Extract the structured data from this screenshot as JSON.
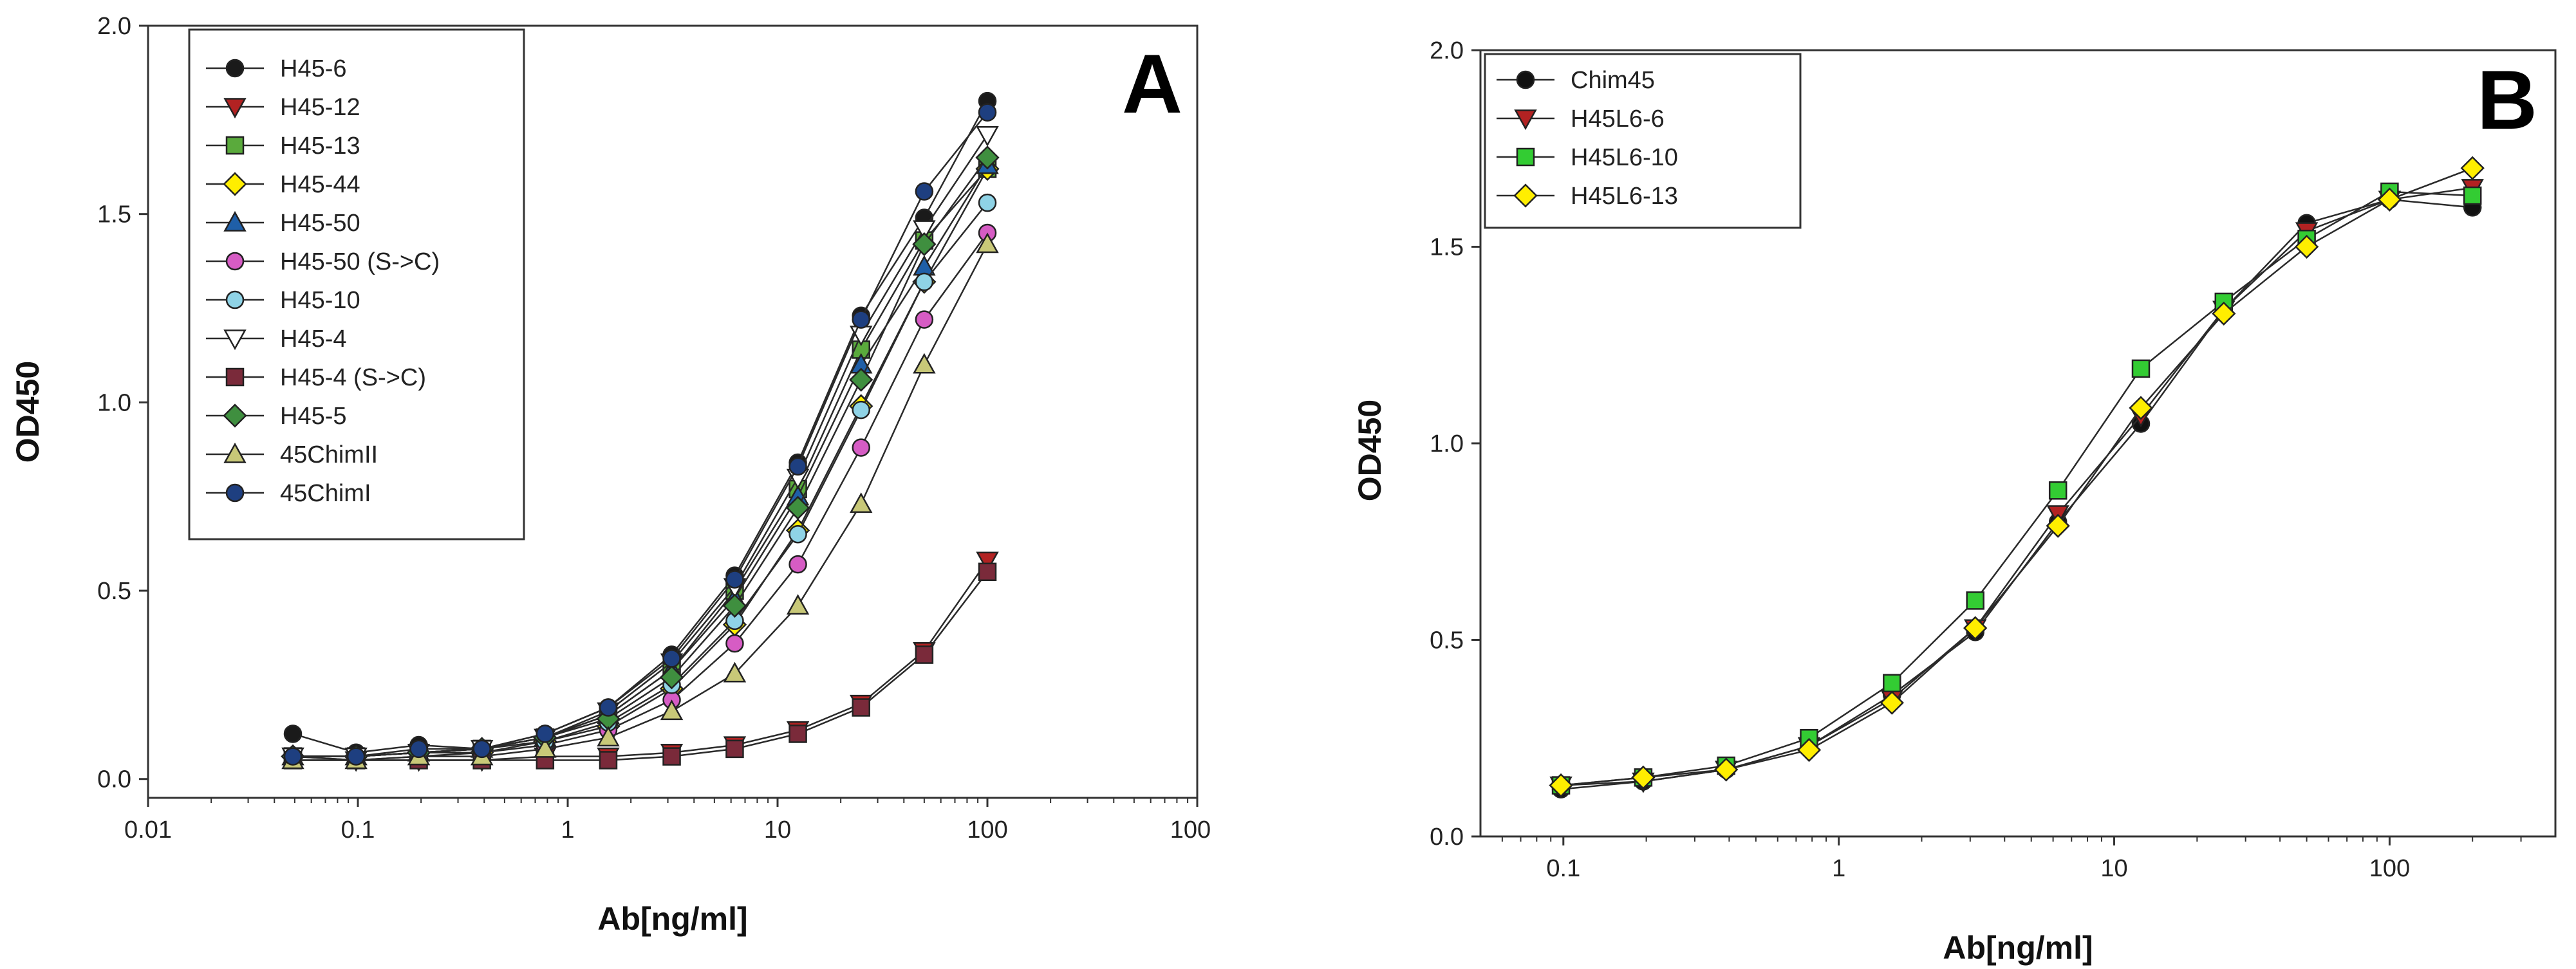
{
  "chart_data": [
    {
      "type": "line",
      "panel_label": "A",
      "xlabel": "Ab[ng/ml]",
      "ylabel": "OD450",
      "xscale": "log",
      "xlim": [
        0.01,
        1000
      ],
      "ylim": [
        -0.05,
        2.0
      ],
      "xticks": [
        0.01,
        0.1,
        1,
        10,
        100,
        1000
      ],
      "xtick_labels": [
        "0.01",
        "0.1",
        "1",
        "10",
        "100",
        "1000"
      ],
      "yticks": [
        0.0,
        0.5,
        1.0,
        1.5,
        2.0
      ],
      "ytick_labels": [
        "0.0",
        "0.5",
        "1.0",
        "1.5",
        "2.0"
      ],
      "grid": false,
      "legend_position": "top-left",
      "x": [
        0.049,
        0.098,
        0.195,
        0.39,
        0.78,
        1.56,
        3.13,
        6.25,
        12.5,
        25,
        50,
        100
      ],
      "series": [
        {
          "name": "H45-6",
          "marker": "circle",
          "color": "#1a1a1a",
          "values": [
            0.12,
            0.07,
            0.09,
            0.08,
            0.12,
            0.19,
            0.33,
            0.54,
            0.84,
            1.23,
            1.49,
            1.8
          ]
        },
        {
          "name": "H45-12",
          "marker": "triangle-down",
          "color": "#b22222",
          "values": [
            0.06,
            0.05,
            0.05,
            0.05,
            0.06,
            0.06,
            0.07,
            0.09,
            0.13,
            0.2,
            0.34,
            0.58
          ]
        },
        {
          "name": "H45-13",
          "marker": "square",
          "color": "#5aaa3c",
          "values": [
            0.06,
            0.06,
            0.07,
            0.08,
            0.11,
            0.17,
            0.29,
            0.5,
            0.77,
            1.14,
            1.43,
            1.62
          ]
        },
        {
          "name": "H45-44",
          "marker": "diamond",
          "color": "#ffee00",
          "values": [
            0.06,
            0.06,
            0.07,
            0.07,
            0.1,
            0.14,
            0.24,
            0.41,
            0.66,
            0.99,
            1.32,
            1.62
          ]
        },
        {
          "name": "H45-50",
          "marker": "triangle-up",
          "color": "#1f5fa8",
          "values": [
            0.06,
            0.06,
            0.07,
            0.08,
            0.11,
            0.17,
            0.29,
            0.48,
            0.75,
            1.1,
            1.36,
            1.63
          ]
        },
        {
          "name": "H45-50 (S->C)",
          "marker": "circle",
          "color": "#d65cc4",
          "values": [
            0.06,
            0.05,
            0.06,
            0.07,
            0.09,
            0.13,
            0.21,
            0.36,
            0.57,
            0.88,
            1.22,
            1.45
          ]
        },
        {
          "name": "H45-10",
          "marker": "circle",
          "color": "#8fd3e6",
          "values": [
            0.06,
            0.06,
            0.07,
            0.08,
            0.1,
            0.15,
            0.25,
            0.42,
            0.65,
            0.98,
            1.32,
            1.53
          ]
        },
        {
          "name": "H45-4",
          "marker": "triangle-down-open",
          "color": "#ffffff",
          "values": [
            0.06,
            0.06,
            0.07,
            0.08,
            0.11,
            0.18,
            0.31,
            0.51,
            0.8,
            1.18,
            1.46,
            1.71
          ]
        },
        {
          "name": "H45-4 (S->C)",
          "marker": "square",
          "color": "#7a2a3a",
          "values": [
            0.05,
            0.05,
            0.05,
            0.05,
            0.05,
            0.05,
            0.06,
            0.08,
            0.12,
            0.19,
            0.33,
            0.55
          ]
        },
        {
          "name": "H45-5",
          "marker": "diamond",
          "color": "#3f8f3f",
          "values": [
            0.06,
            0.06,
            0.07,
            0.08,
            0.11,
            0.16,
            0.27,
            0.46,
            0.72,
            1.06,
            1.42,
            1.65
          ]
        },
        {
          "name": "45ChimII",
          "marker": "triangle-up",
          "color": "#c8c878",
          "values": [
            0.05,
            0.05,
            0.06,
            0.06,
            0.08,
            0.11,
            0.18,
            0.28,
            0.46,
            0.73,
            1.1,
            1.42
          ]
        },
        {
          "name": "45ChimI",
          "marker": "circle",
          "color": "#1e3f80",
          "values": [
            0.06,
            0.06,
            0.08,
            0.08,
            0.12,
            0.19,
            0.32,
            0.53,
            0.83,
            1.22,
            1.56,
            1.77
          ]
        }
      ]
    },
    {
      "type": "line",
      "panel_label": "B",
      "xlabel": "Ab[ng/ml]",
      "ylabel": "OD450",
      "xscale": "log",
      "xlim": [
        0.05,
        400
      ],
      "ylim": [
        0.0,
        2.0
      ],
      "xticks": [
        0.1,
        1,
        10,
        100
      ],
      "xtick_labels": [
        "0.1",
        "1",
        "10",
        "100"
      ],
      "yticks": [
        0.0,
        0.5,
        1.0,
        1.5,
        2.0
      ],
      "ytick_labels": [
        "0.0",
        "0.5",
        "1.0",
        "1.5",
        "2.0"
      ],
      "grid": false,
      "legend_position": "top-left",
      "x": [
        0.098,
        0.195,
        0.39,
        0.78,
        1.56,
        3.13,
        6.25,
        12.5,
        25,
        50,
        100,
        200
      ],
      "series": [
        {
          "name": "Chim45",
          "marker": "circle",
          "color": "#111111",
          "values": [
            0.12,
            0.14,
            0.17,
            0.23,
            0.36,
            0.52,
            0.8,
            1.05,
            1.34,
            1.56,
            1.62,
            1.6
          ]
        },
        {
          "name": "H45L6-6",
          "marker": "triangle-down",
          "color": "#b22222",
          "values": [
            0.13,
            0.14,
            0.17,
            0.23,
            0.35,
            0.53,
            0.82,
            1.07,
            1.34,
            1.54,
            1.62,
            1.65
          ]
        },
        {
          "name": "H45L6-10",
          "marker": "square",
          "color": "#33cc33",
          "values": [
            0.13,
            0.15,
            0.18,
            0.25,
            0.39,
            0.6,
            0.88,
            1.19,
            1.36,
            1.52,
            1.64,
            1.63
          ]
        },
        {
          "name": "H45L6-13",
          "marker": "diamond",
          "color": "#ffee00",
          "values": [
            0.13,
            0.15,
            0.17,
            0.22,
            0.34,
            0.53,
            0.79,
            1.09,
            1.33,
            1.5,
            1.62,
            1.7
          ]
        }
      ]
    }
  ]
}
